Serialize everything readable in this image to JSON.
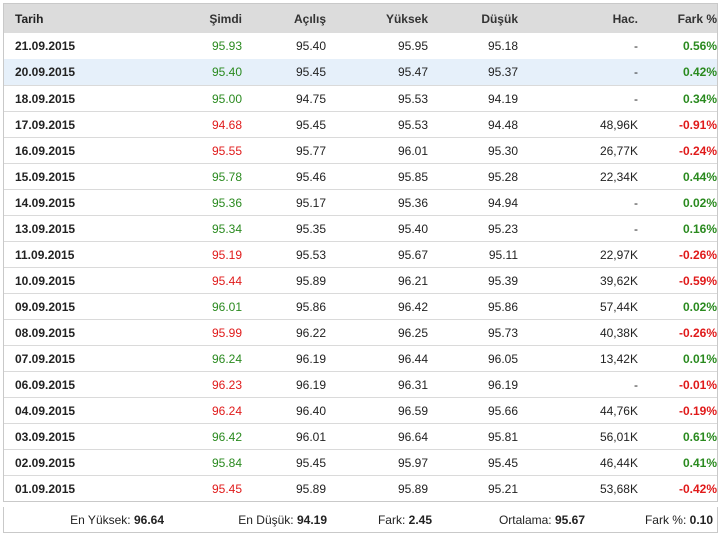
{
  "table": {
    "headers": {
      "date": "Tarih",
      "now": "Şimdi",
      "open": "Açılış",
      "high": "Yüksek",
      "low": "Düşük",
      "volume": "Hac.",
      "change": "Fark %"
    },
    "rows": [
      {
        "date": "21.09.2015",
        "now": "95.93",
        "open": "95.40",
        "high": "95.95",
        "low": "95.18",
        "volume": "-",
        "change": "0.56%",
        "dir": "up"
      },
      {
        "date": "20.09.2015",
        "now": "95.40",
        "open": "95.45",
        "high": "95.47",
        "low": "95.37",
        "volume": "-",
        "change": "0.42%",
        "dir": "up"
      },
      {
        "date": "18.09.2015",
        "now": "95.00",
        "open": "94.75",
        "high": "95.53",
        "low": "94.19",
        "volume": "-",
        "change": "0.34%",
        "dir": "up"
      },
      {
        "date": "17.09.2015",
        "now": "94.68",
        "open": "95.45",
        "high": "95.53",
        "low": "94.48",
        "volume": "48,96K",
        "change": "-0.91%",
        "dir": "down"
      },
      {
        "date": "16.09.2015",
        "now": "95.55",
        "open": "95.77",
        "high": "96.01",
        "low": "95.30",
        "volume": "26,77K",
        "change": "-0.24%",
        "dir": "down"
      },
      {
        "date": "15.09.2015",
        "now": "95.78",
        "open": "95.46",
        "high": "95.85",
        "low": "95.28",
        "volume": "22,34K",
        "change": "0.44%",
        "dir": "up"
      },
      {
        "date": "14.09.2015",
        "now": "95.36",
        "open": "95.17",
        "high": "95.36",
        "low": "94.94",
        "volume": "-",
        "change": "0.02%",
        "dir": "up"
      },
      {
        "date": "13.09.2015",
        "now": "95.34",
        "open": "95.35",
        "high": "95.40",
        "low": "95.23",
        "volume": "-",
        "change": "0.16%",
        "dir": "up"
      },
      {
        "date": "11.09.2015",
        "now": "95.19",
        "open": "95.53",
        "high": "95.67",
        "low": "95.11",
        "volume": "22,97K",
        "change": "-0.26%",
        "dir": "down"
      },
      {
        "date": "10.09.2015",
        "now": "95.44",
        "open": "95.89",
        "high": "96.21",
        "low": "95.39",
        "volume": "39,62K",
        "change": "-0.59%",
        "dir": "down"
      },
      {
        "date": "09.09.2015",
        "now": "96.01",
        "open": "95.86",
        "high": "96.42",
        "low": "95.86",
        "volume": "57,44K",
        "change": "0.02%",
        "dir": "up"
      },
      {
        "date": "08.09.2015",
        "now": "95.99",
        "open": "96.22",
        "high": "96.25",
        "low": "95.73",
        "volume": "40,38K",
        "change": "-0.26%",
        "dir": "down"
      },
      {
        "date": "07.09.2015",
        "now": "96.24",
        "open": "96.19",
        "high": "96.44",
        "low": "96.05",
        "volume": "13,42K",
        "change": "0.01%",
        "dir": "up"
      },
      {
        "date": "06.09.2015",
        "now": "96.23",
        "open": "96.19",
        "high": "96.31",
        "low": "96.19",
        "volume": "-",
        "change": "-0.01%",
        "dir": "down"
      },
      {
        "date": "04.09.2015",
        "now": "96.24",
        "open": "96.40",
        "high": "96.59",
        "low": "95.66",
        "volume": "44,76K",
        "change": "-0.19%",
        "dir": "down"
      },
      {
        "date": "03.09.2015",
        "now": "96.42",
        "open": "96.01",
        "high": "96.64",
        "low": "95.81",
        "volume": "56,01K",
        "change": "0.61%",
        "dir": "up"
      },
      {
        "date": "02.09.2015",
        "now": "95.84",
        "open": "95.45",
        "high": "95.97",
        "low": "95.45",
        "volume": "46,44K",
        "change": "0.41%",
        "dir": "up"
      },
      {
        "date": "01.09.2015",
        "now": "95.45",
        "open": "95.89",
        "high": "95.89",
        "low": "95.21",
        "volume": "53,68K",
        "change": "-0.42%",
        "dir": "down"
      }
    ],
    "highlighted_row": 1
  },
  "footer": {
    "high_label": "En Yüksek:",
    "high_value": "96.64",
    "low_label": "En Düşük:",
    "low_value": "94.19",
    "diff_label": "Fark:",
    "diff_value": "2.45",
    "avg_label": "Ortalama:",
    "avg_value": "95.67",
    "pct_label": "Fark %:",
    "pct_value": "0.10"
  },
  "colors": {
    "up": "#2a8a1f",
    "down": "#e01a1a",
    "header_bg": "#dcdcdc",
    "highlight_bg": "#e6f0fa"
  }
}
